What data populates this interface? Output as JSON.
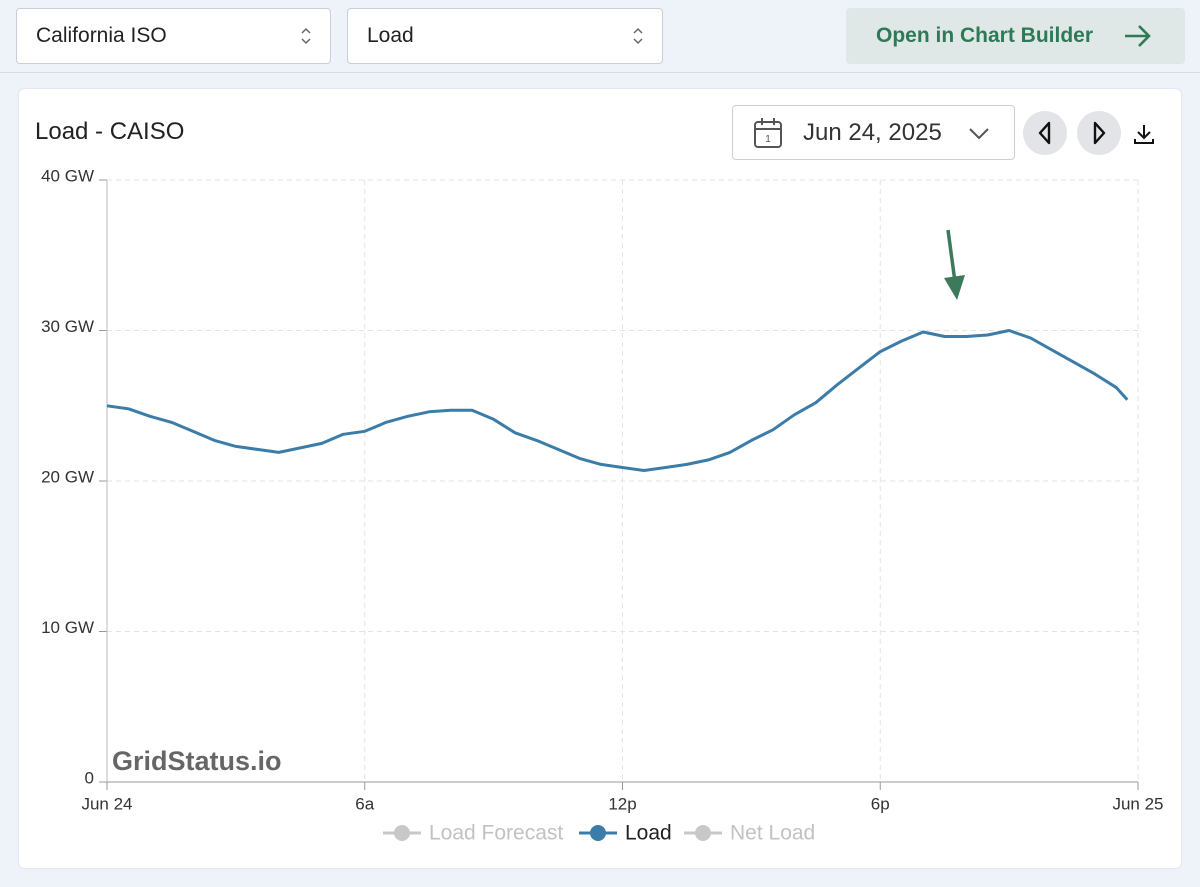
{
  "toolbar": {
    "iso_select": "California ISO",
    "metric_select": "Load",
    "builder_button": "Open in Chart Builder"
  },
  "card": {
    "date": "Jun 24, 2025"
  },
  "chart_data": {
    "type": "line",
    "title": "Load - CAISO",
    "watermark": "GridStatus.io",
    "x": [
      0,
      0.5,
      1,
      1.5,
      2,
      2.5,
      3,
      3.5,
      4,
      4.5,
      5,
      5.5,
      6,
      6.5,
      7,
      7.5,
      8,
      8.5,
      9,
      9.5,
      10,
      10.5,
      11,
      11.5,
      12,
      12.5,
      13,
      13.5,
      14,
      14.5,
      15,
      15.5,
      16,
      16.5,
      17,
      17.5,
      18,
      18.5,
      19,
      19.5,
      20,
      20.5,
      21,
      21.5,
      22,
      22.5,
      23,
      23.5,
      23.75
    ],
    "series": [
      {
        "name": "Load",
        "color": "#3b7ca8",
        "values": [
          25.0,
          24.8,
          24.3,
          23.9,
          23.3,
          22.7,
          22.3,
          22.1,
          21.9,
          22.2,
          22.5,
          23.1,
          23.3,
          23.9,
          24.3,
          24.6,
          24.7,
          24.7,
          24.1,
          23.2,
          22.7,
          22.1,
          21.5,
          21.1,
          20.9,
          20.7,
          20.9,
          21.1,
          21.4,
          21.9,
          22.7,
          23.4,
          24.4,
          25.2,
          26.4,
          27.5,
          28.6,
          29.3,
          29.9,
          29.6,
          29.6,
          29.7,
          30.0,
          29.5,
          28.7,
          27.9,
          27.1,
          26.2,
          25.4
        ]
      }
    ],
    "inactive_series": [
      {
        "name": "Load Forecast",
        "color": "#c8c8c8"
      },
      {
        "name": "Net Load",
        "color": "#c8c8c8"
      }
    ],
    "xlim": [
      0,
      24
    ],
    "xticks": [
      {
        "value": 0,
        "label": "Jun 24"
      },
      {
        "value": 6,
        "label": "6a"
      },
      {
        "value": 12,
        "label": "12p"
      },
      {
        "value": 18,
        "label": "6p"
      },
      {
        "value": 24,
        "label": "Jun 25"
      }
    ],
    "ylim": [
      0,
      40
    ],
    "yticks": [
      0,
      {
        "value": 10,
        "label": "10 GW"
      },
      {
        "value": 20,
        "label": "20 GW"
      },
      {
        "value": 30,
        "label": "30 GW"
      },
      {
        "value": 40,
        "label": "40 GW"
      }
    ],
    "grid": true
  }
}
